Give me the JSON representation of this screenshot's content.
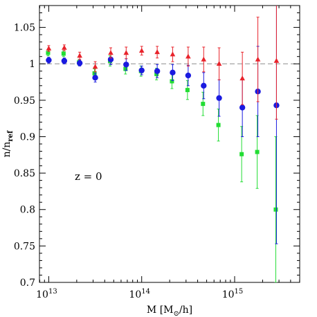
{
  "chart_data": {
    "type": "scatter",
    "xscale": "log",
    "xlim_log10": [
      12.9,
      15.7
    ],
    "ylim": [
      0.7,
      1.08
    ],
    "grid": false,
    "legend": "none",
    "reference_line": {
      "y": 1.0,
      "style": "dashed",
      "color": "#999999"
    },
    "x_ticks": [
      {
        "value_log10": 13,
        "base": "10",
        "exp": "13"
      },
      {
        "value_log10": 14,
        "base": "10",
        "exp": "14"
      },
      {
        "value_log10": 15,
        "base": "10",
        "exp": "15"
      }
    ],
    "y_ticks": [
      {
        "value": 0.7,
        "label": "0.7"
      },
      {
        "value": 0.75,
        "label": "0.75"
      },
      {
        "value": 0.8,
        "label": "0.8"
      },
      {
        "value": 0.85,
        "label": "0.85"
      },
      {
        "value": 0.9,
        "label": "0.9"
      },
      {
        "value": 0.95,
        "label": "0.95"
      },
      {
        "value": 1.0,
        "label": "1"
      },
      {
        "value": 1.05,
        "label": "1.05"
      }
    ],
    "xlabel": {
      "main": "M [M",
      "sub": "⊙",
      "tail": "/h]"
    },
    "ylabel": {
      "main": "n/n",
      "sub": "ref"
    },
    "annotation": "z = 0",
    "series": [
      {
        "marker": "triangle",
        "color": "#e8232b",
        "points": [
          {
            "x": 13.0,
            "y": 1.021,
            "err": 0.004
          },
          {
            "x": 13.167,
            "y": 1.022,
            "err": 0.004
          },
          {
            "x": 13.333,
            "y": 1.011,
            "err": 0.005
          },
          {
            "x": 13.5,
            "y": 0.996,
            "err": 0.007
          },
          {
            "x": 13.667,
            "y": 1.015,
            "err": 0.007
          },
          {
            "x": 13.833,
            "y": 1.015,
            "err": 0.008
          },
          {
            "x": 14.0,
            "y": 1.018,
            "err": 0.006
          },
          {
            "x": 14.167,
            "y": 1.016,
            "err": 0.008
          },
          {
            "x": 14.333,
            "y": 1.013,
            "err": 0.01
          },
          {
            "x": 14.5,
            "y": 1.01,
            "err": 0.013
          },
          {
            "x": 14.667,
            "y": 1.006,
            "err": 0.017
          },
          {
            "x": 14.833,
            "y": 1.0,
            "err": 0.022
          },
          {
            "x": 15.083,
            "y": 0.98,
            "err": 0.036
          },
          {
            "x": 15.25,
            "y": 1.006,
            "err": 0.058
          },
          {
            "x": 15.45,
            "y": 1.004,
            "err": 0.08
          }
        ]
      },
      {
        "marker": "square",
        "color": "#22dd33",
        "points": [
          {
            "x": 13.0,
            "y": 1.015,
            "err": 0.004
          },
          {
            "x": 13.167,
            "y": 1.014,
            "err": 0.004
          },
          {
            "x": 13.333,
            "y": 1.002,
            "err": 0.004
          },
          {
            "x": 13.5,
            "y": 0.987,
            "err": 0.006
          },
          {
            "x": 13.667,
            "y": 1.004,
            "err": 0.007
          },
          {
            "x": 13.833,
            "y": 0.993,
            "err": 0.007
          },
          {
            "x": 14.0,
            "y": 0.99,
            "err": 0.007
          },
          {
            "x": 14.167,
            "y": 0.986,
            "err": 0.008
          },
          {
            "x": 14.333,
            "y": 0.976,
            "err": 0.01
          },
          {
            "x": 14.5,
            "y": 0.964,
            "err": 0.013
          },
          {
            "x": 14.667,
            "y": 0.945,
            "err": 0.016
          },
          {
            "x": 14.833,
            "y": 0.916,
            "err": 0.022
          },
          {
            "x": 15.083,
            "y": 0.876,
            "err": 0.038
          },
          {
            "x": 15.25,
            "y": 0.879,
            "err": 0.05
          },
          {
            "x": 15.45,
            "y": 0.8,
            "err": 0.1
          }
        ]
      },
      {
        "marker": "circle",
        "color": "#1a1ae0",
        "points": [
          {
            "x": 13.0,
            "y": 1.005,
            "err": 0.004
          },
          {
            "x": 13.167,
            "y": 1.004,
            "err": 0.004
          },
          {
            "x": 13.333,
            "y": 1.001,
            "err": 0.004
          },
          {
            "x": 13.5,
            "y": 0.981,
            "err": 0.006
          },
          {
            "x": 13.667,
            "y": 1.006,
            "err": 0.007
          },
          {
            "x": 13.833,
            "y": 0.999,
            "err": 0.008
          },
          {
            "x": 14.0,
            "y": 0.991,
            "err": 0.006
          },
          {
            "x": 14.167,
            "y": 0.99,
            "err": 0.009
          },
          {
            "x": 14.333,
            "y": 0.988,
            "err": 0.011
          },
          {
            "x": 14.5,
            "y": 0.984,
            "err": 0.014
          },
          {
            "x": 14.667,
            "y": 0.97,
            "err": 0.018
          },
          {
            "x": 14.833,
            "y": 0.953,
            "err": 0.025
          },
          {
            "x": 15.083,
            "y": 0.94,
            "err": 0.04
          },
          {
            "x": 15.25,
            "y": 0.962,
            "err": 0.062
          },
          {
            "x": 15.45,
            "y": 0.943,
            "err": 0.19
          }
        ]
      }
    ]
  }
}
